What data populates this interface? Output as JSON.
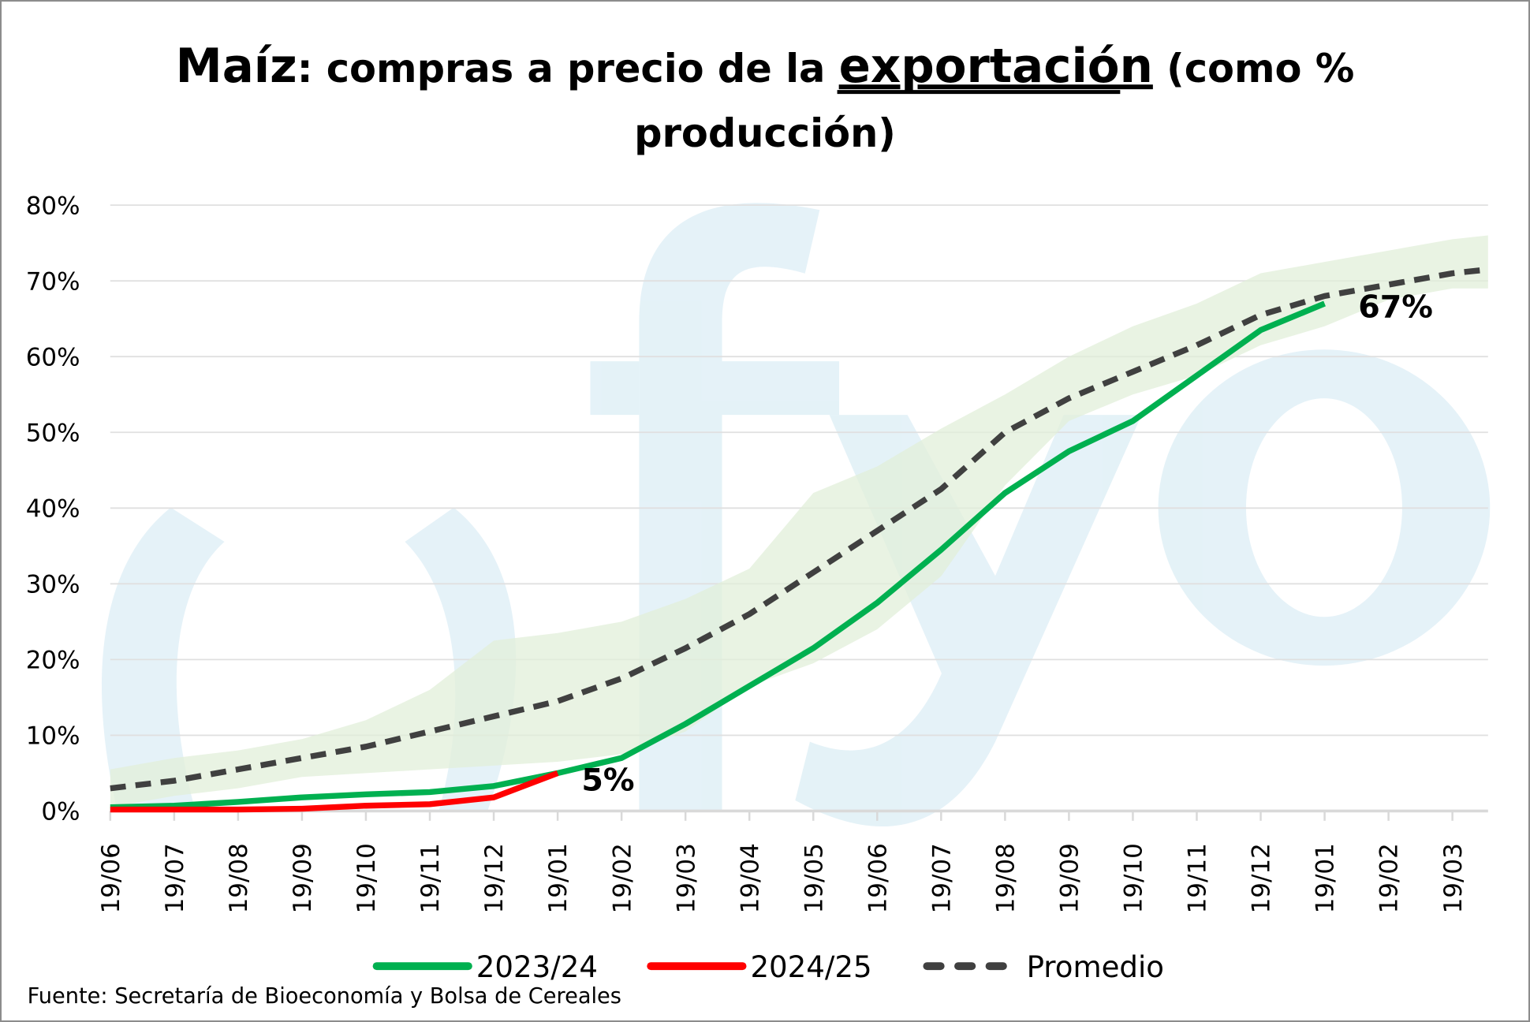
{
  "watermark_logo": "cfyo",
  "chart_data": {
    "type": "line",
    "title_parts": {
      "lead": "Maíz",
      "mid": ": compras a precio de la ",
      "underlined": "exportación",
      "tail": " (como %",
      "line2": "producción)"
    },
    "xlabel": "",
    "ylabel": "",
    "categories": [
      "19/06",
      "19/07",
      "19/08",
      "19/09",
      "19/10",
      "19/11",
      "19/12",
      "19/01",
      "19/02",
      "19/03",
      "19/04",
      "19/05",
      "19/06",
      "19/07",
      "19/08",
      "19/09",
      "19/10",
      "19/11",
      "19/12",
      "19/01",
      "19/02",
      "19/03"
    ],
    "ylim": [
      0,
      80
    ],
    "yticks": [
      "0%",
      "10%",
      "20%",
      "30%",
      "40%",
      "50%",
      "60%",
      "70%",
      "80%"
    ],
    "grid": true,
    "legend_position": "bottom",
    "series": [
      {
        "name": "2023/24",
        "color": "#00b050",
        "style": "solid",
        "values": [
          0.5,
          0.7,
          1.2,
          1.8,
          2.2,
          2.5,
          3.3,
          5,
          7,
          11.5,
          16.5,
          21.5,
          27.5,
          34.5,
          42,
          47.5,
          51.5,
          57.5,
          63.5,
          67,
          null,
          null
        ]
      },
      {
        "name": "2024/25",
        "color": "#ff0000",
        "style": "solid",
        "values": [
          0.2,
          0.2,
          0.2,
          0.3,
          0.7,
          0.9,
          1.8,
          5,
          null,
          null,
          null,
          null,
          null,
          null,
          null,
          null,
          null,
          null,
          null,
          null,
          null,
          null
        ]
      },
      {
        "name": "Promedio",
        "color": "#404040",
        "style": "dashed",
        "values": [
          3,
          4,
          5.5,
          7,
          8.5,
          10.5,
          12.5,
          14.5,
          17.5,
          21.5,
          26,
          31.5,
          37,
          42.5,
          50,
          54.5,
          58,
          61.5,
          65.5,
          68,
          69.5,
          71
        ]
      }
    ],
    "range_band": {
      "color": "#e2efd9",
      "upper": [
        5.5,
        7,
        8,
        9.5,
        12,
        16,
        22.5,
        23.5,
        25,
        28,
        32,
        42,
        45.5,
        50.5,
        55,
        60,
        64,
        67,
        71,
        72.5,
        74,
        75.5
      ],
      "lower": [
        0.5,
        2,
        3,
        4.5,
        5,
        5.5,
        6,
        6.5,
        7.5,
        10.5,
        16.5,
        19.5,
        24,
        31,
        43,
        51.5,
        55,
        57.5,
        61.5,
        64,
        67.5,
        69
      ]
    },
    "annotations": [
      {
        "text": "67%",
        "series": "2023/24"
      },
      {
        "text": "5%",
        "series": "2024/25"
      }
    ],
    "source": "Fuente: Secretaría de Bioeconomía y Bolsa de Cereales"
  }
}
